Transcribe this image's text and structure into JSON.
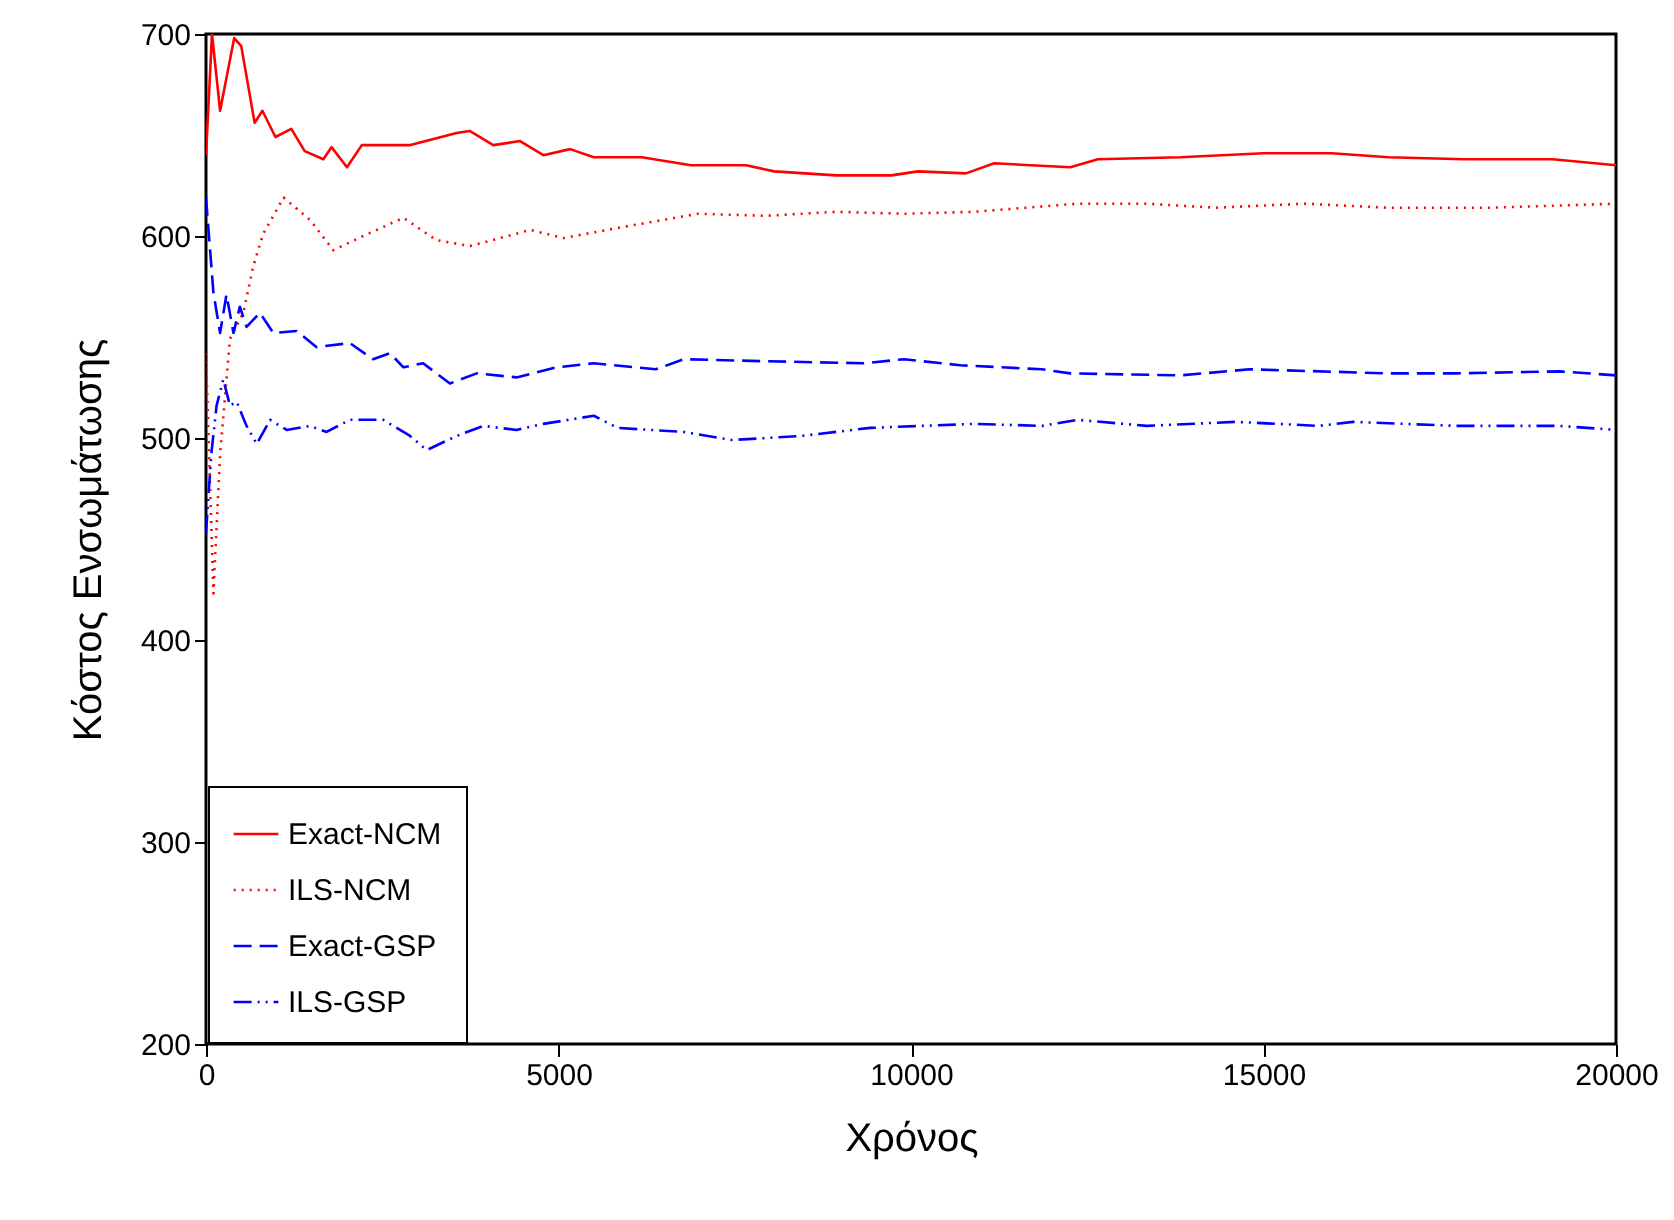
{
  "chart_data": {
    "type": "line",
    "xlabel": "Χρόνος",
    "ylabel": "Κόστος Ενσωμάτωσης",
    "xlim": [
      0,
      20000
    ],
    "ylim": [
      200,
      700
    ],
    "xticks": [
      0,
      5000,
      10000,
      15000,
      20000
    ],
    "yticks": [
      200,
      300,
      400,
      500,
      600,
      700
    ],
    "grid": false,
    "legend": "bottom left",
    "marker": "none",
    "series": [
      {
        "name": "Exact-NCM",
        "color": "#ff0000",
        "line_style": "solid",
        "x": [
          0,
          85,
          200,
          400,
          500,
          690,
          800,
          985,
          1210,
          1400,
          1665,
          1780,
          2000,
          2210,
          2515,
          2900,
          3555,
          3740,
          4075,
          4455,
          4785,
          5165,
          5500,
          6180,
          6880,
          7660,
          8060,
          8940,
          9720,
          10100,
          10780,
          11180,
          12260,
          12650,
          13820,
          15000,
          15970,
          16770,
          17840,
          19100,
          20000
        ],
        "values": [
          640,
          700,
          662,
          698,
          694,
          656,
          662,
          649,
          653,
          642,
          638,
          644,
          634,
          645,
          645,
          645,
          651,
          652,
          645,
          647,
          640,
          643,
          639,
          639,
          635,
          635,
          632,
          630,
          630,
          632,
          631,
          636,
          634,
          638,
          639,
          641,
          641,
          639,
          638,
          638,
          635
        ]
      },
      {
        "name": "ILS-NCM",
        "color": "#ff0000",
        "line_style": "dotted",
        "x": [
          0,
          105,
          200,
          340,
          530,
          670,
          810,
          1100,
          1475,
          1805,
          2230,
          2800,
          3265,
          3745,
          4600,
          5070,
          6000,
          6980,
          7950,
          8940,
          9900,
          10900,
          12360,
          13340,
          14320,
          15580,
          16770,
          18230,
          20000
        ],
        "values": [
          542,
          423,
          492,
          549,
          562,
          585,
          601,
          619,
          608,
          593,
          600,
          609,
          598,
          595,
          603,
          599,
          605,
          611,
          610,
          612,
          611,
          612,
          616,
          616,
          614,
          616,
          614,
          614,
          616
        ]
      },
      {
        "name": "Exact-GSP",
        "color": "#0000ff",
        "line_style": "dashed",
        "x": [
          0,
          105,
          200,
          290,
          390,
          480,
          575,
          765,
          955,
          1285,
          1565,
          2040,
          2370,
          2610,
          2800,
          3080,
          3460,
          3840,
          4405,
          4975,
          5500,
          6380,
          6780,
          7950,
          9330,
          9900,
          10700,
          11860,
          12260,
          13820,
          14800,
          16770,
          17730,
          19200,
          20000
        ],
        "values": [
          619,
          572,
          552,
          571,
          552,
          565,
          555,
          562,
          552,
          553,
          545,
          547,
          539,
          542,
          535,
          537,
          527,
          532,
          530,
          535,
          537,
          534,
          539,
          538,
          537,
          539,
          536,
          534,
          532,
          531,
          534,
          532,
          532,
          533,
          531
        ]
      },
      {
        "name": "ILS-GSP",
        "color": "#0000ff",
        "line_style": "dashdot",
        "x": [
          0,
          75,
          150,
          245,
          340,
          435,
          575,
          720,
          910,
          1145,
          1475,
          1710,
          2040,
          2515,
          2895,
          3130,
          3555,
          3935,
          4405,
          4785,
          5500,
          5840,
          6780,
          7460,
          8440,
          9420,
          10900,
          11860,
          12360,
          13340,
          14610,
          15780,
          16270,
          17730,
          19200,
          20000
        ],
        "values": [
          453,
          492,
          516,
          529,
          516,
          518,
          506,
          497,
          509,
          504,
          506,
          503,
          509,
          509,
          501,
          494,
          501,
          506,
          504,
          507,
          511,
          505,
          503,
          499,
          501,
          505,
          507,
          506,
          509,
          506,
          508,
          506,
          508,
          506,
          506,
          504
        ]
      }
    ]
  }
}
